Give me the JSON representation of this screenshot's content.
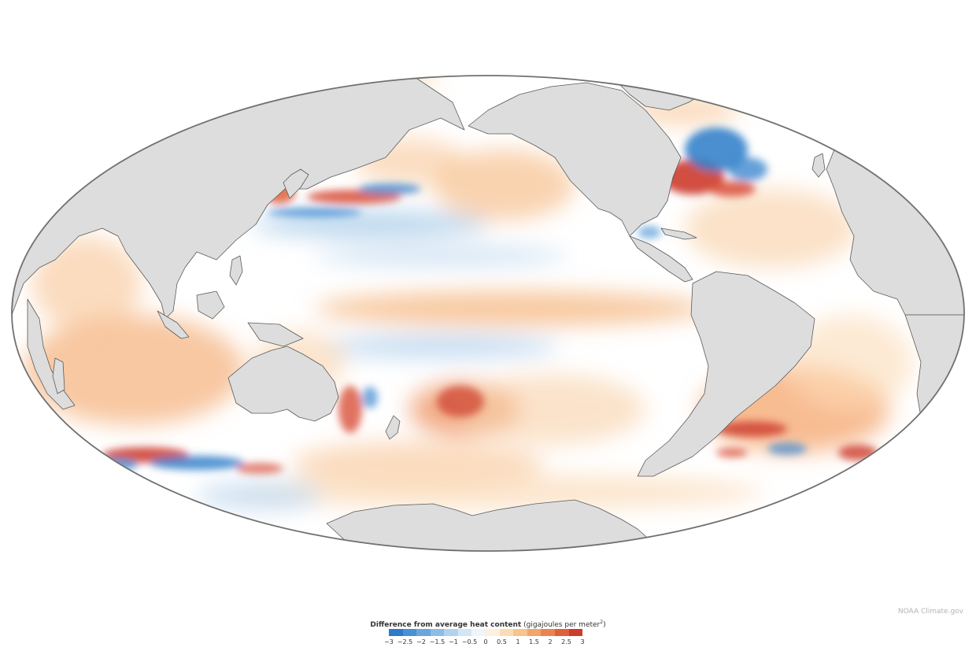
{
  "map": {
    "projection": "Mollweide",
    "center": "Pacific",
    "land_color": "#dddddd",
    "ocean_base_color": "#ffffff",
    "outline_color": "#707070",
    "notable_features": [
      {
        "name": "north-atlantic-warm-anomaly",
        "level": 3
      },
      {
        "name": "north-atlantic-cold-anomaly",
        "level": -3
      },
      {
        "name": "kuroshio-warm-band",
        "level": 3
      },
      {
        "name": "kuroshio-cold-band",
        "level": -2.5
      },
      {
        "name": "equatorial-pacific-warm-band",
        "level": 1
      },
      {
        "name": "south-pacific-warm-patch",
        "level": 2.5
      },
      {
        "name": "south-atlantic-warm-band",
        "level": 3
      },
      {
        "name": "southern-indian-mixed-band",
        "level": 3
      }
    ]
  },
  "legend": {
    "title_bold": "Difference from average heat content",
    "title_units": "(gigajoules per meter",
    "title_sup": "2",
    "title_close": ")",
    "colors": [
      "#2c7bc8",
      "#4891d4",
      "#6aa6dc",
      "#8dbde5",
      "#b2d3ed",
      "#d4e6f4",
      "#eef5fb",
      "#fdf0de",
      "#fbdcb5",
      "#f8c38c",
      "#f3a46b",
      "#ec8251",
      "#e05f3b",
      "#cc3b2b"
    ],
    "ticks": [
      "−3",
      "−2.5",
      "−2",
      "−1.5",
      "−1",
      "−0.5",
      "0",
      "0.5",
      "1",
      "1.5",
      "2",
      "2.5",
      "3"
    ]
  },
  "credit": "NOAA Climate.gov"
}
